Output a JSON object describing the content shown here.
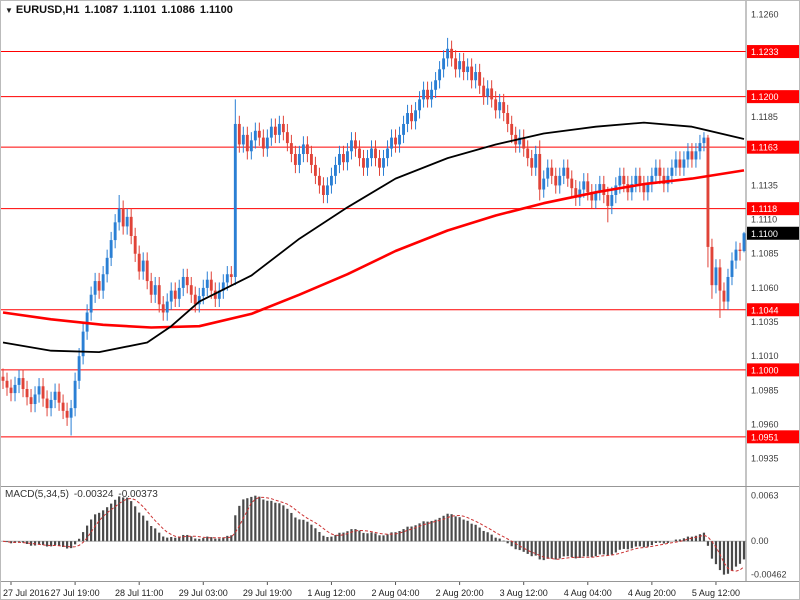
{
  "header": {
    "dropdown_icon": "▼",
    "symbol": "EURUSD,H1",
    "open": "1.1087",
    "high": "1.1101",
    "low": "1.1086",
    "close": "1.1100"
  },
  "colors": {
    "background": "#ffffff",
    "bull": "#2a7fd4",
    "bear": "#e04338",
    "level": "#ff0000",
    "ma_black": "#000000",
    "ma_red": "#ff0000",
    "hist": "#4a4a4a",
    "signal": "#cc3333",
    "axis_text": "#3c3c3c",
    "tag_text": "#ffffff",
    "current_tag_bg": "#000000",
    "border": "#888888"
  },
  "chart_data": {
    "type": "candlestick",
    "title": "EURUSD,H1",
    "timeframe": "H1",
    "ylim": [
      1.0915,
      1.127
    ],
    "y_ticks": [
      1.126,
      1.1185,
      1.1135,
      1.111,
      1.1085,
      1.106,
      1.1035,
      1.101,
      1.0985,
      1.096,
      1.0935
    ],
    "levels": [
      1.1233,
      1.12,
      1.1163,
      1.1118,
      1.1044,
      1.1,
      1.0951
    ],
    "current_price": 1.11,
    "x_labels": [
      {
        "bar": 2,
        "label": "27 Jul 2016"
      },
      {
        "bar": 18,
        "label": "27 Jul 19:00"
      },
      {
        "bar": 34,
        "label": "28 Jul 11:00"
      },
      {
        "bar": 50,
        "label": "29 Jul 03:00"
      },
      {
        "bar": 66,
        "label": "29 Jul 19:00"
      },
      {
        "bar": 82,
        "label": "1 Aug 12:00"
      },
      {
        "bar": 98,
        "label": "2 Aug 04:00"
      },
      {
        "bar": 114,
        "label": "2 Aug 20:00"
      },
      {
        "bar": 130,
        "label": "3 Aug 12:00"
      },
      {
        "bar": 146,
        "label": "4 Aug 04:00"
      },
      {
        "bar": 162,
        "label": "4 Aug 20:00"
      },
      {
        "bar": 178,
        "label": "5 Aug 12:00"
      }
    ],
    "ma_black": [
      [
        0,
        1.102
      ],
      [
        12,
        1.1014
      ],
      [
        24,
        1.1013
      ],
      [
        36,
        1.102
      ],
      [
        42,
        1.1032
      ],
      [
        49,
        1.105
      ],
      [
        62,
        1.1069
      ],
      [
        74,
        1.1096
      ],
      [
        86,
        1.1119
      ],
      [
        98,
        1.114
      ],
      [
        111,
        1.1155
      ],
      [
        123,
        1.1165
      ],
      [
        135,
        1.1173
      ],
      [
        148,
        1.1178
      ],
      [
        160,
        1.1181
      ],
      [
        172,
        1.1178
      ],
      [
        185,
        1.1169
      ]
    ],
    "ma_red": [
      [
        0,
        1.1042
      ],
      [
        12,
        1.1037
      ],
      [
        25,
        1.1033
      ],
      [
        37,
        1.1031
      ],
      [
        49,
        1.1032
      ],
      [
        62,
        1.1041
      ],
      [
        74,
        1.1055
      ],
      [
        86,
        1.107
      ],
      [
        98,
        1.1087
      ],
      [
        111,
        1.1102
      ],
      [
        123,
        1.1113
      ],
      [
        135,
        1.1122
      ],
      [
        148,
        1.113
      ],
      [
        160,
        1.1136
      ],
      [
        172,
        1.114
      ],
      [
        185,
        1.1146
      ]
    ],
    "indicator": {
      "label": "MACD(5,34,5)",
      "value": "-0.00324",
      "signal_value": "-0.00373",
      "fast": 5,
      "slow": 34,
      "signal": 5,
      "ylim": [
        -0.0055,
        0.0075
      ],
      "y_ticks": [
        {
          "v": 0.0063,
          "label": "0.0063"
        },
        {
          "v": 0,
          "label": "0.00"
        },
        {
          "v": -0.00462,
          "label": "-0.00462"
        }
      ]
    },
    "candles": [
      [
        1.0995,
        1.1001,
        1.0986,
        1.0992
      ],
      [
        1.0992,
        1.0998,
        1.0981,
        1.0987
      ],
      [
        1.0987,
        1.0993,
        1.0977,
        1.0983
      ],
      [
        1.0983,
        1.0995,
        1.0977,
        1.0989
      ],
      [
        1.0989,
        1.1,
        1.0983,
        1.0994
      ],
      [
        1.0994,
        1.1,
        1.098,
        1.0986
      ],
      [
        1.0986,
        1.0992,
        1.0974,
        1.098
      ],
      [
        1.098,
        1.0986,
        1.0969,
        1.0975
      ],
      [
        1.0975,
        1.0988,
        1.0969,
        1.0982
      ],
      [
        1.0982,
        1.0994,
        1.0976,
        1.0988
      ],
      [
        1.0988,
        1.0994,
        1.0973,
        1.0979
      ],
      [
        1.0979,
        1.0985,
        1.0966,
        1.0972
      ],
      [
        1.0972,
        1.0984,
        1.0966,
        1.0978
      ],
      [
        1.0978,
        1.099,
        1.0972,
        1.0984
      ],
      [
        1.0984,
        1.099,
        1.097,
        1.0976
      ],
      [
        1.0976,
        1.0982,
        1.0964,
        1.097
      ],
      [
        1.097,
        1.0976,
        1.0959,
        1.0965
      ],
      [
        1.0965,
        1.0978,
        1.0952,
        1.0972
      ],
      [
        1.0972,
        1.0998,
        1.0966,
        1.0992
      ],
      [
        1.0992,
        1.1016,
        1.0986,
        1.101
      ],
      [
        1.101,
        1.1034,
        1.1004,
        1.1028
      ],
      [
        1.1028,
        1.1048,
        1.1022,
        1.1042
      ],
      [
        1.1042,
        1.1061,
        1.1036,
        1.1055
      ],
      [
        1.1055,
        1.1071,
        1.1049,
        1.1065
      ],
      [
        1.1065,
        1.1071,
        1.1052,
        1.1058
      ],
      [
        1.1058,
        1.1076,
        1.1052,
        1.107
      ],
      [
        1.107,
        1.1088,
        1.1064,
        1.1082
      ],
      [
        1.1082,
        1.1101,
        1.1076,
        1.1095
      ],
      [
        1.1095,
        1.1114,
        1.1089,
        1.1108
      ],
      [
        1.1108,
        1.1128,
        1.1102,
        1.1118
      ],
      [
        1.1118,
        1.1124,
        1.1099,
        1.1105
      ],
      [
        1.1105,
        1.1118,
        1.1099,
        1.1112
      ],
      [
        1.1112,
        1.1118,
        1.1092,
        1.1098
      ],
      [
        1.1098,
        1.1104,
        1.1079,
        1.1085
      ],
      [
        1.1085,
        1.1091,
        1.1066,
        1.1072
      ],
      [
        1.1072,
        1.1086,
        1.1066,
        1.108
      ],
      [
        1.108,
        1.1086,
        1.1059,
        1.1065
      ],
      [
        1.1065,
        1.1071,
        1.1049,
        1.1055
      ],
      [
        1.1055,
        1.1068,
        1.1049,
        1.1062
      ],
      [
        1.1062,
        1.1068,
        1.1042,
        1.1048
      ],
      [
        1.1048,
        1.1054,
        1.1036,
        1.1042
      ],
      [
        1.1042,
        1.1056,
        1.1036,
        1.105
      ],
      [
        1.105,
        1.1064,
        1.1044,
        1.1058
      ],
      [
        1.1058,
        1.1064,
        1.1046,
        1.1052
      ],
      [
        1.1052,
        1.1066,
        1.1046,
        1.106
      ],
      [
        1.106,
        1.1074,
        1.1054,
        1.1068
      ],
      [
        1.1068,
        1.1074,
        1.1056,
        1.1062
      ],
      [
        1.1062,
        1.1068,
        1.1049,
        1.1055
      ],
      [
        1.1055,
        1.1061,
        1.1042,
        1.1048
      ],
      [
        1.1048,
        1.106,
        1.1042,
        1.1054
      ],
      [
        1.1054,
        1.1066,
        1.1048,
        1.106
      ],
      [
        1.106,
        1.1072,
        1.1054,
        1.1066
      ],
      [
        1.1066,
        1.1072,
        1.1052,
        1.1058
      ],
      [
        1.1058,
        1.1064,
        1.1046,
        1.1052
      ],
      [
        1.1052,
        1.1064,
        1.1046,
        1.1058
      ],
      [
        1.1058,
        1.107,
        1.1052,
        1.1064
      ],
      [
        1.1064,
        1.1076,
        1.1058,
        1.107
      ],
      [
        1.107,
        1.1076,
        1.1062,
        1.1068
      ],
      [
        1.1068,
        1.1198,
        1.1062,
        1.118
      ],
      [
        1.118,
        1.1186,
        1.1159,
        1.1165
      ],
      [
        1.1165,
        1.1178,
        1.1159,
        1.1172
      ],
      [
        1.1172,
        1.1178,
        1.1154,
        1.116
      ],
      [
        1.116,
        1.1174,
        1.1154,
        1.1168
      ],
      [
        1.1168,
        1.1181,
        1.1162,
        1.1175
      ],
      [
        1.1175,
        1.1181,
        1.1164,
        1.117
      ],
      [
        1.117,
        1.1176,
        1.1156,
        1.1162
      ],
      [
        1.1162,
        1.1176,
        1.1156,
        1.117
      ],
      [
        1.117,
        1.1184,
        1.1164,
        1.1178
      ],
      [
        1.1178,
        1.1184,
        1.1166,
        1.1172
      ],
      [
        1.1172,
        1.1186,
        1.1166,
        1.118
      ],
      [
        1.118,
        1.1186,
        1.1168,
        1.1174
      ],
      [
        1.1174,
        1.118,
        1.116,
        1.1166
      ],
      [
        1.1166,
        1.1172,
        1.1152,
        1.1158
      ],
      [
        1.1158,
        1.1164,
        1.1144,
        1.115
      ],
      [
        1.115,
        1.1164,
        1.1144,
        1.1158
      ],
      [
        1.1158,
        1.1171,
        1.1152,
        1.1165
      ],
      [
        1.1165,
        1.1171,
        1.1152,
        1.1158
      ],
      [
        1.1158,
        1.1164,
        1.1144,
        1.115
      ],
      [
        1.115,
        1.1156,
        1.1136,
        1.1142
      ],
      [
        1.1142,
        1.1148,
        1.1129,
        1.1135
      ],
      [
        1.1135,
        1.1141,
        1.1122,
        1.1128
      ],
      [
        1.1128,
        1.1141,
        1.1122,
        1.1135
      ],
      [
        1.1135,
        1.1148,
        1.1129,
        1.1142
      ],
      [
        1.1142,
        1.1156,
        1.1136,
        1.115
      ],
      [
        1.115,
        1.1164,
        1.1144,
        1.1158
      ],
      [
        1.1158,
        1.1164,
        1.1146,
        1.1152
      ],
      [
        1.1152,
        1.1166,
        1.1146,
        1.116
      ],
      [
        1.116,
        1.1174,
        1.1154,
        1.1168
      ],
      [
        1.1168,
        1.1174,
        1.1156,
        1.1162
      ],
      [
        1.1162,
        1.1168,
        1.1149,
        1.1155
      ],
      [
        1.1155,
        1.1161,
        1.1142,
        1.1148
      ],
      [
        1.1148,
        1.1161,
        1.1142,
        1.1155
      ],
      [
        1.1155,
        1.1168,
        1.1149,
        1.1162
      ],
      [
        1.1162,
        1.1168,
        1.1149,
        1.1155
      ],
      [
        1.1155,
        1.1161,
        1.1142,
        1.1148
      ],
      [
        1.1148,
        1.1161,
        1.1142,
        1.1155
      ],
      [
        1.1155,
        1.1168,
        1.1149,
        1.1162
      ],
      [
        1.1162,
        1.1176,
        1.1156,
        1.117
      ],
      [
        1.117,
        1.1176,
        1.1159,
        1.1165
      ],
      [
        1.1165,
        1.1178,
        1.1159,
        1.1172
      ],
      [
        1.1172,
        1.1186,
        1.1166,
        1.118
      ],
      [
        1.118,
        1.1194,
        1.1174,
        1.1188
      ],
      [
        1.1188,
        1.1194,
        1.1176,
        1.1182
      ],
      [
        1.1182,
        1.1196,
        1.1176,
        1.119
      ],
      [
        1.119,
        1.1204,
        1.1184,
        1.1198
      ],
      [
        1.1198,
        1.1211,
        1.1192,
        1.1205
      ],
      [
        1.1205,
        1.1211,
        1.1192,
        1.1198
      ],
      [
        1.1198,
        1.1211,
        1.1192,
        1.1205
      ],
      [
        1.1205,
        1.1218,
        1.1199,
        1.1212
      ],
      [
        1.1212,
        1.1226,
        1.1206,
        1.122
      ],
      [
        1.122,
        1.1234,
        1.1214,
        1.1228
      ],
      [
        1.1228,
        1.1243,
        1.1222,
        1.1235
      ],
      [
        1.1235,
        1.1241,
        1.1222,
        1.1228
      ],
      [
        1.1228,
        1.1234,
        1.1214,
        1.122
      ],
      [
        1.122,
        1.1232,
        1.1214,
        1.1226
      ],
      [
        1.1226,
        1.1232,
        1.1212,
        1.1218
      ],
      [
        1.1218,
        1.1228,
        1.1212,
        1.1222
      ],
      [
        1.1222,
        1.1228,
        1.1206,
        1.1212
      ],
      [
        1.1212,
        1.1224,
        1.1206,
        1.1218
      ],
      [
        1.1218,
        1.1224,
        1.1202,
        1.1208
      ],
      [
        1.1208,
        1.1214,
        1.1194,
        1.12
      ],
      [
        1.12,
        1.1212,
        1.1194,
        1.1206
      ],
      [
        1.1206,
        1.1212,
        1.1192,
        1.1198
      ],
      [
        1.1198,
        1.1204,
        1.1184,
        1.119
      ],
      [
        1.119,
        1.1202,
        1.1184,
        1.1196
      ],
      [
        1.1196,
        1.1202,
        1.1182,
        1.1188
      ],
      [
        1.1188,
        1.1194,
        1.1174,
        1.118
      ],
      [
        1.118,
        1.1186,
        1.1166,
        1.1172
      ],
      [
        1.1172,
        1.1178,
        1.1159,
        1.1165
      ],
      [
        1.1165,
        1.1176,
        1.1159,
        1.117
      ],
      [
        1.117,
        1.1176,
        1.1156,
        1.1162
      ],
      [
        1.1162,
        1.1168,
        1.1149,
        1.1155
      ],
      [
        1.1155,
        1.1161,
        1.1142,
        1.1148
      ],
      [
        1.1148,
        1.1164,
        1.1142,
        1.1158
      ],
      [
        1.1158,
        1.1168,
        1.1124,
        1.1132
      ],
      [
        1.1132,
        1.1146,
        1.1126,
        1.114
      ],
      [
        1.114,
        1.1154,
        1.1134,
        1.1148
      ],
      [
        1.1148,
        1.1154,
        1.1136,
        1.1142
      ],
      [
        1.1142,
        1.1148,
        1.1129,
        1.1135
      ],
      [
        1.1135,
        1.1148,
        1.1129,
        1.1142
      ],
      [
        1.1142,
        1.1154,
        1.1136,
        1.1148
      ],
      [
        1.1148,
        1.1154,
        1.1134,
        1.114
      ],
      [
        1.114,
        1.1146,
        1.1127,
        1.1133
      ],
      [
        1.1133,
        1.1139,
        1.112,
        1.1126
      ],
      [
        1.1126,
        1.1138,
        1.112,
        1.1132
      ],
      [
        1.1132,
        1.1144,
        1.1126,
        1.1138
      ],
      [
        1.1138,
        1.1144,
        1.1124,
        1.113
      ],
      [
        1.113,
        1.1136,
        1.1118,
        1.1124
      ],
      [
        1.1124,
        1.1136,
        1.1118,
        1.113
      ],
      [
        1.113,
        1.1142,
        1.1124,
        1.1136
      ],
      [
        1.1136,
        1.1142,
        1.1122,
        1.1128
      ],
      [
        1.1128,
        1.1134,
        1.1108,
        1.112
      ],
      [
        1.112,
        1.1134,
        1.1114,
        1.1128
      ],
      [
        1.1128,
        1.1141,
        1.1122,
        1.1135
      ],
      [
        1.1135,
        1.1148,
        1.1129,
        1.1142
      ],
      [
        1.1142,
        1.1148,
        1.113,
        1.1136
      ],
      [
        1.1136,
        1.1142,
        1.1124,
        1.113
      ],
      [
        1.113,
        1.1142,
        1.1124,
        1.1136
      ],
      [
        1.1136,
        1.1148,
        1.113,
        1.1142
      ],
      [
        1.1142,
        1.1148,
        1.113,
        1.1136
      ],
      [
        1.1136,
        1.1142,
        1.1124,
        1.113
      ],
      [
        1.113,
        1.1142,
        1.1124,
        1.1136
      ],
      [
        1.1136,
        1.1148,
        1.113,
        1.1142
      ],
      [
        1.1142,
        1.1154,
        1.1136,
        1.1148
      ],
      [
        1.1148,
        1.1154,
        1.1136,
        1.1142
      ],
      [
        1.1142,
        1.1148,
        1.113,
        1.1136
      ],
      [
        1.1136,
        1.1148,
        1.113,
        1.1142
      ],
      [
        1.1142,
        1.1154,
        1.1136,
        1.1148
      ],
      [
        1.1148,
        1.116,
        1.1142,
        1.1154
      ],
      [
        1.1154,
        1.116,
        1.1142,
        1.1148
      ],
      [
        1.1148,
        1.116,
        1.1142,
        1.1154
      ],
      [
        1.1154,
        1.1166,
        1.1148,
        1.116
      ],
      [
        1.116,
        1.1166,
        1.1148,
        1.1154
      ],
      [
        1.1154,
        1.1166,
        1.1148,
        1.116
      ],
      [
        1.116,
        1.1172,
        1.1154,
        1.1166
      ],
      [
        1.1166,
        1.1174,
        1.116,
        1.117
      ],
      [
        1.117,
        1.1172,
        1.1075,
        1.109
      ],
      [
        1.109,
        1.1096,
        1.1052,
        1.1062
      ],
      [
        1.1062,
        1.1081,
        1.1056,
        1.1075
      ],
      [
        1.1075,
        1.1081,
        1.1038,
        1.1058
      ],
      [
        1.1058,
        1.1064,
        1.1044,
        1.105
      ],
      [
        1.105,
        1.1074,
        1.1044,
        1.1068
      ],
      [
        1.1068,
        1.1086,
        1.1062,
        1.108
      ],
      [
        1.108,
        1.1094,
        1.1074,
        1.1088
      ],
      [
        1.1088,
        1.1093,
        1.108,
        1.1087
      ],
      [
        1.1087,
        1.1101,
        1.1086,
        1.11
      ]
    ]
  }
}
